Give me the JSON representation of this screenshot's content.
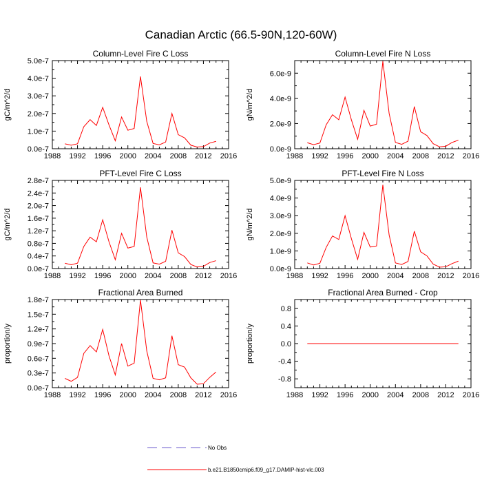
{
  "title": "Canadian Arctic (66.5-90N,120-60W)",
  "legend": [
    {
      "label": "No Obs",
      "style": "dashed",
      "color": "#6a5acd"
    },
    {
      "label": "b.e21.B1850cmip6.f09_g17.DAMIP-hist-vlc.003",
      "style": "solid",
      "color": "#ff0000"
    }
  ],
  "chart_data": [
    {
      "type": "line",
      "title": "Column-Level Fire C Loss",
      "ylabel": "gC/m^2/d",
      "xlim": [
        1988,
        2016
      ],
      "xticks": [
        1988,
        1992,
        1996,
        2000,
        2004,
        2008,
        2012,
        2016
      ],
      "ylim": [
        0,
        5e-07
      ],
      "yticks": [
        0,
        1e-07,
        2e-07,
        3e-07,
        4e-07,
        5e-07
      ],
      "ytick_labels": [
        "0.0e-7",
        "1.0e-7",
        "2.0e-7",
        "3.0e-7",
        "4.0e-7",
        "5.0e-7"
      ],
      "x": [
        1990,
        1991,
        1992,
        1993,
        1994,
        1995,
        1996,
        1997,
        1998,
        1999,
        2000,
        2001,
        2002,
        2003,
        2004,
        2005,
        2006,
        2007,
        2008,
        2009,
        2010,
        2011,
        2012,
        2013,
        2014
      ],
      "values": [
        2.8e-08,
        2e-08,
        2.8e-08,
        1.25e-07,
        1.65e-07,
        1.32e-07,
        2.35e-07,
        1.35e-07,
        4.5e-08,
        1.8e-07,
        1.05e-07,
        1.15e-07,
        4.1e-07,
        1.55e-07,
        3e-08,
        2.2e-08,
        3.8e-08,
        2e-07,
        8e-08,
        6.2e-08,
        2e-08,
        1e-08,
        1.2e-08,
        3.2e-08,
        4.2e-08
      ]
    },
    {
      "type": "line",
      "title": "Column-Level Fire N Loss",
      "ylabel": "gN/m^2/d",
      "xlim": [
        1988,
        2016
      ],
      "xticks": [
        1988,
        1992,
        1996,
        2000,
        2004,
        2008,
        2012,
        2016
      ],
      "ylim": [
        0,
        7e-09
      ],
      "yticks": [
        0,
        2e-09,
        4e-09,
        6e-09
      ],
      "ytick_labels": [
        "0.0e-9",
        "2.0e-9",
        "4.0e-9",
        "6.0e-9"
      ],
      "x": [
        1990,
        1991,
        1992,
        1993,
        1994,
        1995,
        1996,
        1997,
        1998,
        1999,
        2000,
        2001,
        2002,
        2003,
        2004,
        2005,
        2006,
        2007,
        2008,
        2009,
        2010,
        2011,
        2012,
        2013,
        2014
      ],
      "values": [
        4.8e-10,
        3.2e-10,
        4.5e-10,
        1.9e-09,
        2.7e-09,
        2.3e-09,
        4.1e-09,
        2.3e-09,
        7.5e-10,
        3.05e-09,
        1.8e-09,
        1.95e-09,
        6.95e-09,
        2.8e-09,
        5e-10,
        3.5e-10,
        6e-10,
        3.35e-09,
        1.35e-09,
        1.05e-09,
        4e-10,
        1.5e-10,
        2e-10,
        5e-10,
        6.8e-10
      ]
    },
    {
      "type": "line",
      "title": "PFT-Level Fire C Loss",
      "ylabel": "gC/m^2/d",
      "xlim": [
        1988,
        2016
      ],
      "xticks": [
        1988,
        1992,
        1996,
        2000,
        2004,
        2008,
        2012,
        2016
      ],
      "ylim": [
        0,
        2.8e-07
      ],
      "yticks": [
        0,
        4e-08,
        8e-08,
        1.2e-07,
        1.6e-07,
        2e-07,
        2.4e-07,
        2.8e-07
      ],
      "ytick_labels": [
        "0.0e-7",
        "0.4e-7",
        "0.8e-7",
        "1.2e-7",
        "1.6e-7",
        "2.0e-7",
        "2.4e-7",
        "2.8e-7"
      ],
      "x": [
        1990,
        1991,
        1992,
        1993,
        1994,
        1995,
        1996,
        1997,
        1998,
        1999,
        2000,
        2001,
        2002,
        2003,
        2004,
        2005,
        2006,
        2007,
        2008,
        2009,
        2010,
        2011,
        2012,
        2013,
        2014
      ],
      "values": [
        1.7e-08,
        1.2e-08,
        1.7e-08,
        7e-08,
        1e-07,
        8.5e-08,
        1.55e-07,
        8.5e-08,
        2.8e-08,
        1.12e-07,
        6.5e-08,
        7e-08,
        2.58e-07,
        1e-07,
        1.8e-08,
        1.4e-08,
        2.3e-08,
        1.22e-07,
        5e-08,
        3.8e-08,
        1.3e-08,
        5e-09,
        7e-09,
        1.9e-08,
        2.5e-08
      ]
    },
    {
      "type": "line",
      "title": "PFT-Level Fire N Loss",
      "ylabel": "gN/m^2/d",
      "xlim": [
        1988,
        2016
      ],
      "xticks": [
        1988,
        1992,
        1996,
        2000,
        2004,
        2008,
        2012,
        2016
      ],
      "ylim": [
        0,
        5e-09
      ],
      "yticks": [
        0,
        1e-09,
        2e-09,
        3e-09,
        4e-09,
        5e-09
      ],
      "ytick_labels": [
        "0.0e-9",
        "1.0e-9",
        "2.0e-9",
        "3.0e-9",
        "4.0e-9",
        "5.0e-9"
      ],
      "x": [
        1990,
        1991,
        1992,
        1993,
        1994,
        1995,
        1996,
        1997,
        1998,
        1999,
        2000,
        2001,
        2002,
        2003,
        2004,
        2005,
        2006,
        2007,
        2008,
        2009,
        2010,
        2011,
        2012,
        2013,
        2014
      ],
      "values": [
        3.2e-10,
        2e-10,
        3e-10,
        1.2e-09,
        1.85e-09,
        1.65e-09,
        3e-09,
        1.7e-09,
        5.2e-10,
        2.05e-09,
        1.22e-09,
        1.28e-09,
        4.75e-09,
        1.9e-09,
        3.2e-10,
        2.3e-10,
        4e-10,
        2.12e-09,
        9.5e-10,
        7.2e-10,
        2.5e-10,
        8e-11,
        1e-10,
        2.8e-10,
        4.2e-10
      ]
    },
    {
      "type": "line",
      "title": "Fractional Area Burned",
      "ylabel": "proportion/y",
      "xlim": [
        1988,
        2016
      ],
      "xticks": [
        1988,
        1992,
        1996,
        2000,
        2004,
        2008,
        2012,
        2016
      ],
      "ylim": [
        0,
        1.8e-07
      ],
      "yticks": [
        0,
        3e-08,
        6e-08,
        9e-08,
        1.2e-07,
        1.5e-07,
        1.8e-07
      ],
      "ytick_labels": [
        "0.0e-7",
        "0.3e-7",
        "0.6e-7",
        "0.9e-7",
        "1.2e-7",
        "1.5e-7",
        "1.8e-7"
      ],
      "x": [
        1990,
        1991,
        1992,
        1993,
        1994,
        1995,
        1996,
        1997,
        1998,
        1999,
        2000,
        2001,
        2002,
        2003,
        2004,
        2005,
        2006,
        2007,
        2008,
        2009,
        2010,
        2011,
        2012,
        2013,
        2014
      ],
      "values": [
        1.9e-08,
        1.3e-08,
        2.1e-08,
        7e-08,
        8.6e-08,
        7.3e-08,
        1.19e-07,
        6.5e-08,
        2.6e-08,
        9e-08,
        4.4e-08,
        5e-08,
        1.79e-07,
        7.5e-08,
        1.9e-08,
        1.6e-08,
        2e-08,
        1.06e-07,
        4.7e-08,
        4.2e-08,
        2e-08,
        7e-09,
        8e-09,
        2.1e-08,
        3.2e-08
      ]
    },
    {
      "type": "line",
      "title": "Fractional Area Burned - Crop",
      "ylabel": "proportion/y",
      "xlim": [
        1988,
        2016
      ],
      "xticks": [
        1988,
        1992,
        1996,
        2000,
        2004,
        2008,
        2012,
        2016
      ],
      "ylim": [
        -1.0,
        1.0
      ],
      "yticks": [
        -0.8,
        -0.4,
        0.0,
        0.4,
        0.8
      ],
      "ytick_labels": [
        "-0.8",
        "-0.4",
        "0.0",
        "0.4",
        "0.8"
      ],
      "x": [
        1990,
        1991,
        1992,
        1993,
        1994,
        1995,
        1996,
        1997,
        1998,
        1999,
        2000,
        2001,
        2002,
        2003,
        2004,
        2005,
        2006,
        2007,
        2008,
        2009,
        2010,
        2011,
        2012,
        2013,
        2014
      ],
      "values": [
        0,
        0,
        0,
        0,
        0,
        0,
        0,
        0,
        0,
        0,
        0,
        0,
        0,
        0,
        0,
        0,
        0,
        0,
        0,
        0,
        0,
        0,
        0,
        0,
        0
      ]
    }
  ]
}
